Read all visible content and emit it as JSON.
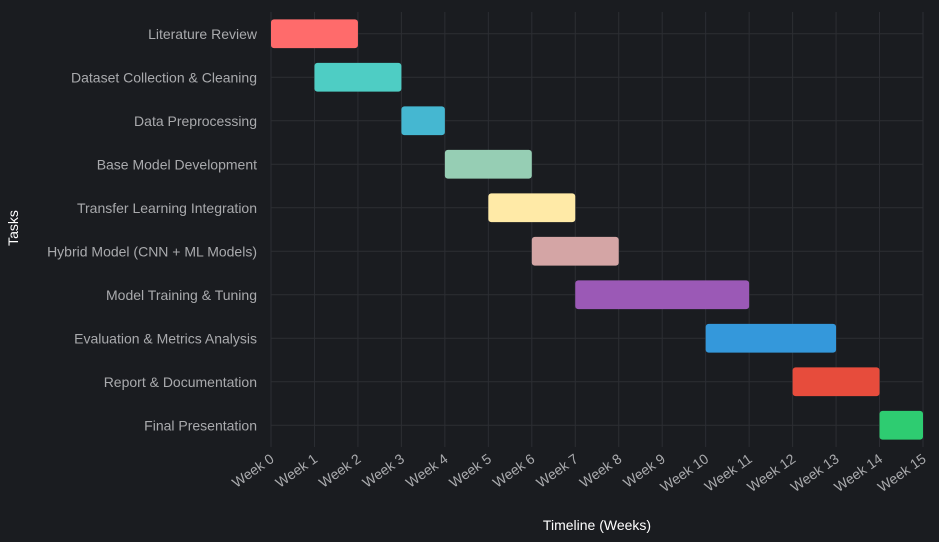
{
  "chart_data": {
    "type": "gantt",
    "title": "",
    "xlabel": "Timeline (Weeks)",
    "ylabel": "Tasks",
    "xlim": [
      0,
      15
    ],
    "grid": true,
    "x_ticks": [
      "Week 0",
      "Week 1",
      "Week 2",
      "Week 3",
      "Week 4",
      "Week 5",
      "Week 6",
      "Week 7",
      "Week 8",
      "Week 9",
      "Week 10",
      "Week 11",
      "Week 12",
      "Week 13",
      "Week 14",
      "Week 15"
    ],
    "tasks": [
      {
        "label": "Literature Review",
        "start": 0,
        "end": 2,
        "color": "#ff6b6b"
      },
      {
        "label": "Dataset Collection & Cleaning",
        "start": 1,
        "end": 3,
        "color": "#4ecdc4"
      },
      {
        "label": "Data Preprocessing",
        "start": 3,
        "end": 4,
        "color": "#45b7d1"
      },
      {
        "label": "Base Model Development",
        "start": 4,
        "end": 6,
        "color": "#96ceb4"
      },
      {
        "label": "Transfer Learning Integration",
        "start": 5,
        "end": 7,
        "color": "#ffeaa7"
      },
      {
        "label": "Hybrid Model (CNN + ML Models)",
        "start": 6,
        "end": 8,
        "color": "#d4a5a5"
      },
      {
        "label": "Model Training & Tuning",
        "start": 7,
        "end": 11,
        "color": "#9b59b6"
      },
      {
        "label": "Evaluation & Metrics Analysis",
        "start": 10,
        "end": 13,
        "color": "#3498db"
      },
      {
        "label": "Report & Documentation",
        "start": 12,
        "end": 14,
        "color": "#e74c3c"
      },
      {
        "label": "Final Presentation",
        "start": 14,
        "end": 15,
        "color": "#2ecc71"
      }
    ]
  }
}
